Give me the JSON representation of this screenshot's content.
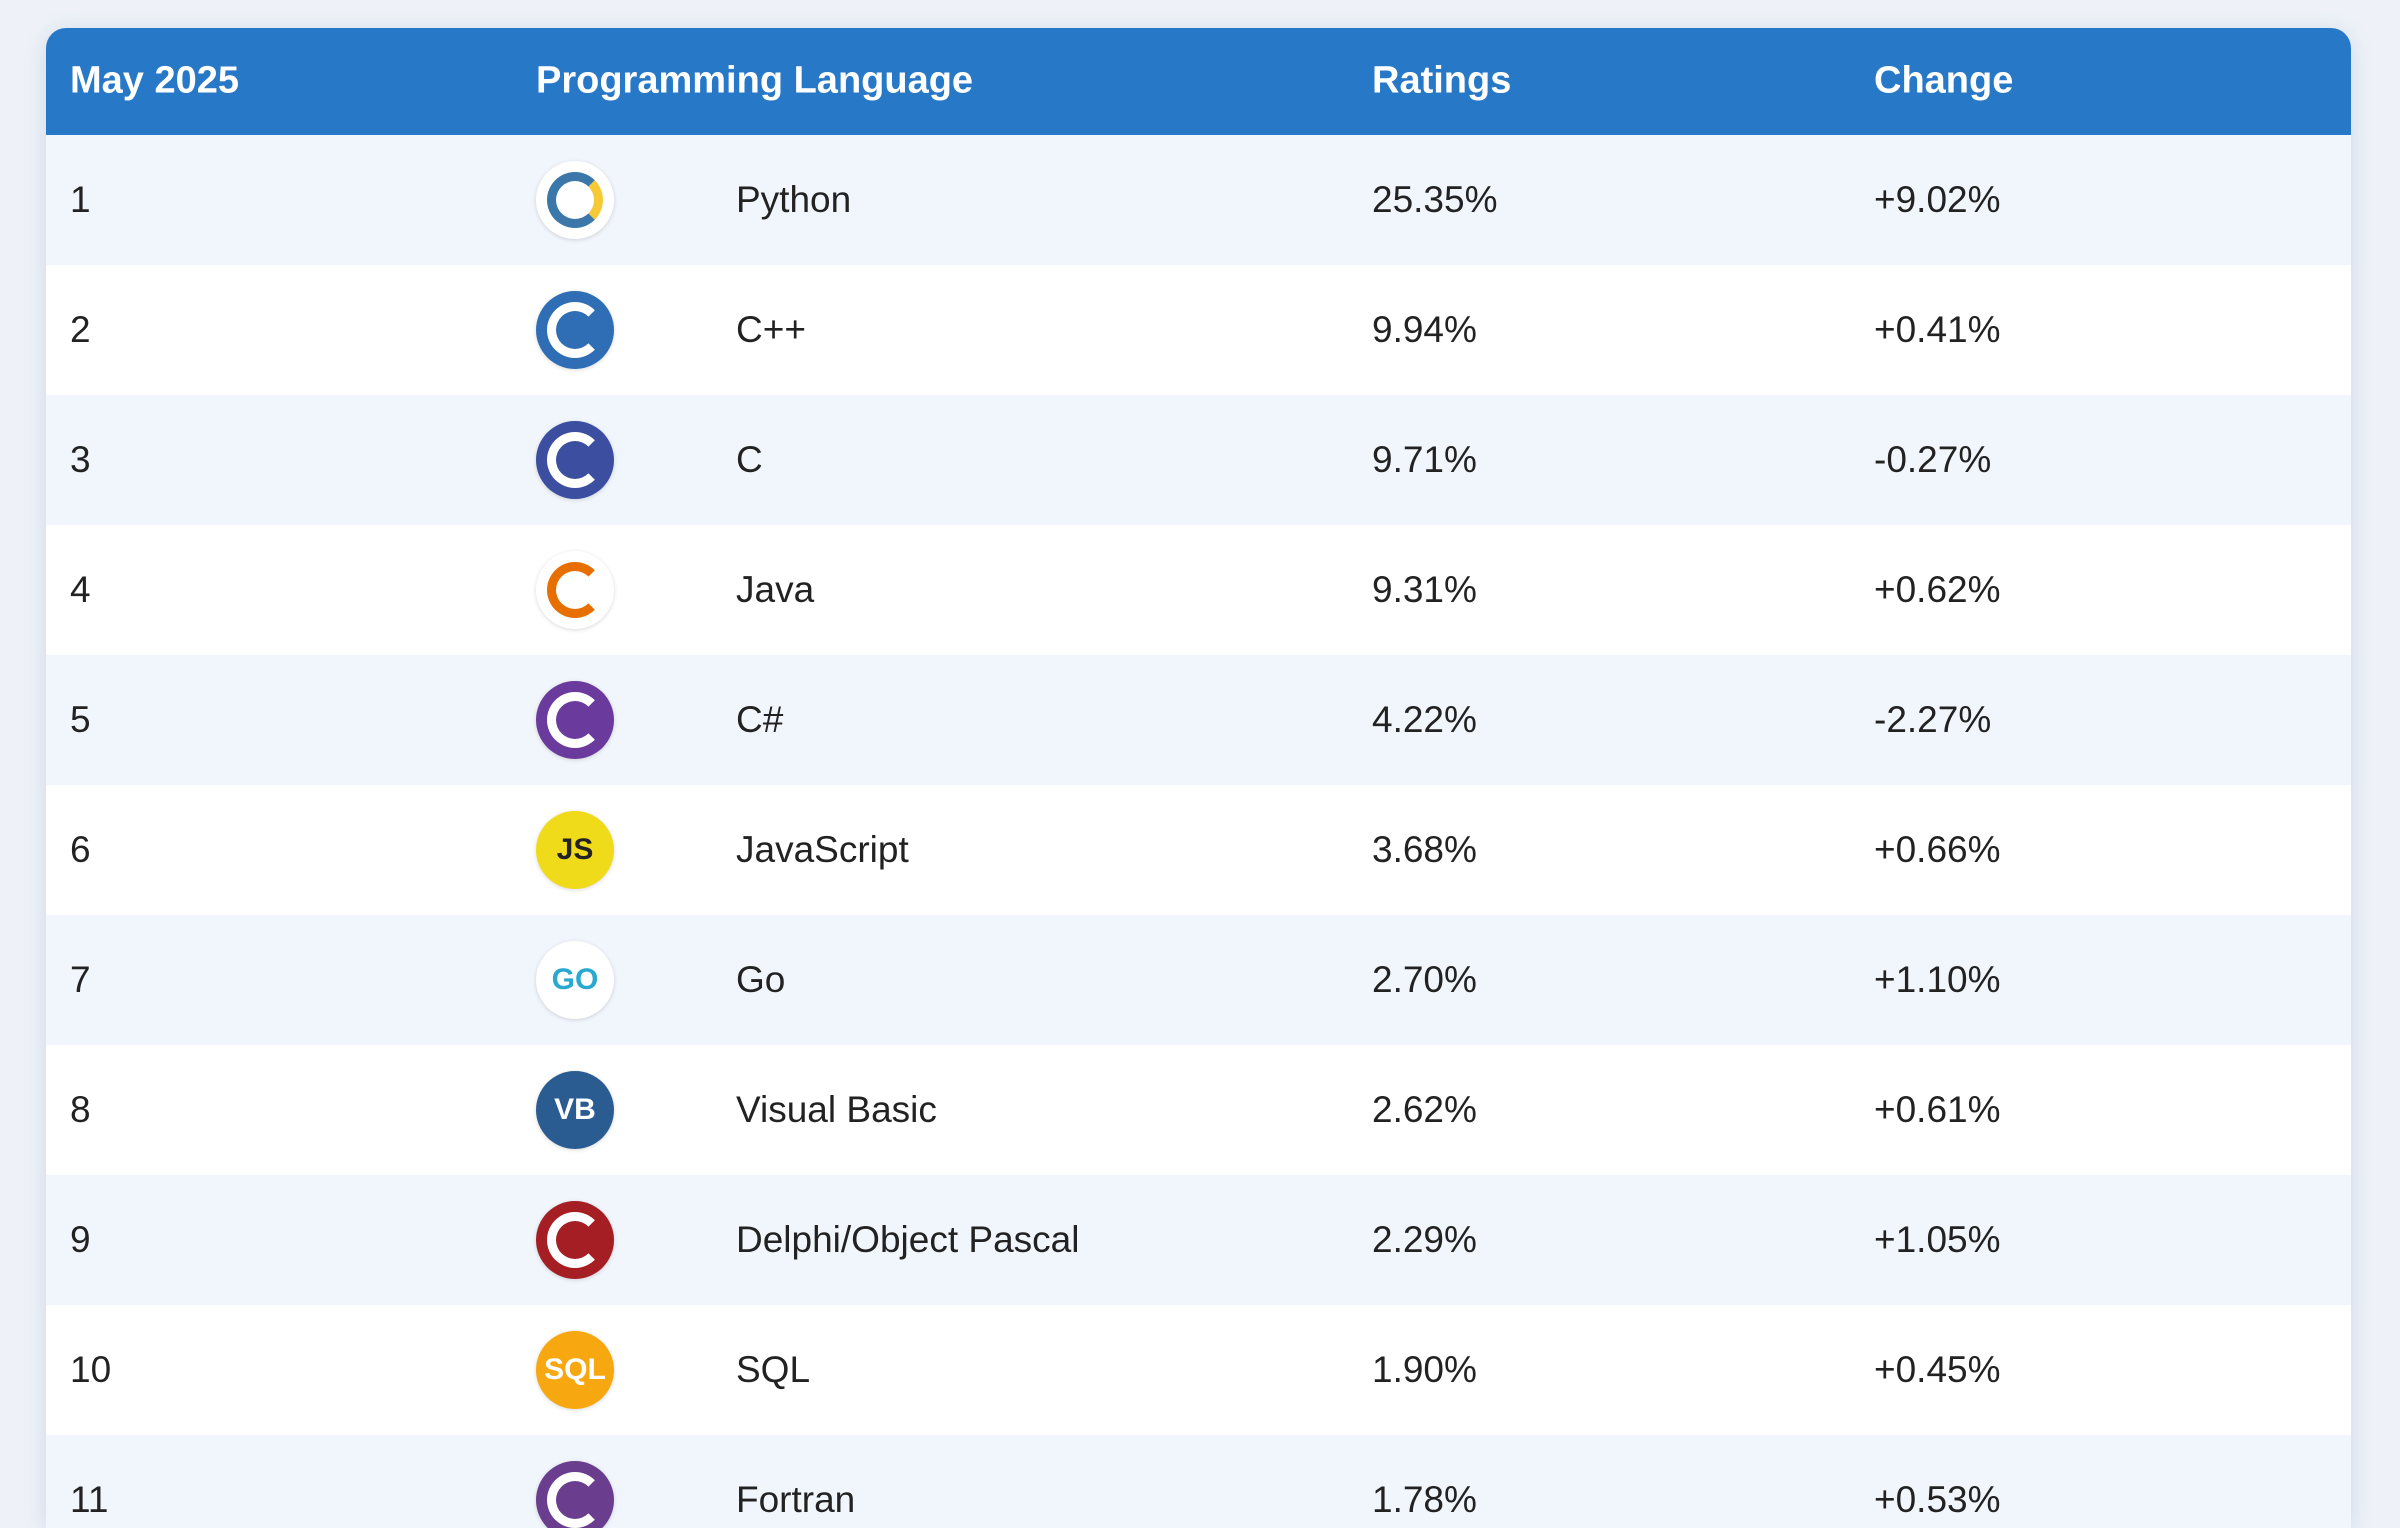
{
  "table": {
    "header": [
      "May 2025",
      "Programming Language",
      "Ratings",
      "Change"
    ],
    "rows": [
      {
        "rank": "1",
        "language": "Python",
        "ratings": "25.35%",
        "change": "+9.02%"
      },
      {
        "rank": "2",
        "language": "C++",
        "ratings": "9.94%",
        "change": "+0.41%"
      },
      {
        "rank": "3",
        "language": "C",
        "ratings": "9.71%",
        "change": "-0.27%"
      },
      {
        "rank": "4",
        "language": "Java",
        "ratings": "9.31%",
        "change": "+0.62%"
      },
      {
        "rank": "5",
        "language": "C#",
        "ratings": "4.22%",
        "change": "-2.27%"
      },
      {
        "rank": "6",
        "language": "JavaScript",
        "logo_text": "JS",
        "ratings": "3.68%",
        "change": "+0.66%"
      },
      {
        "rank": "7",
        "language": "Go",
        "logo_text": "GO",
        "ratings": "2.70%",
        "change": "+1.10%"
      },
      {
        "rank": "8",
        "language": "Visual Basic",
        "logo_text": "VB",
        "ratings": "2.62%",
        "change": "+0.61%"
      },
      {
        "rank": "9",
        "language": "Delphi/Object Pascal",
        "ratings": "2.29%",
        "change": "+1.05%"
      },
      {
        "rank": "10",
        "language": "SQL",
        "logo_text": "SQL",
        "ratings": "1.90%",
        "change": "+0.45%"
      },
      {
        "rank": "11",
        "language": "Fortran",
        "ratings": "1.78%",
        "change": "+0.53%"
      }
    ]
  }
}
